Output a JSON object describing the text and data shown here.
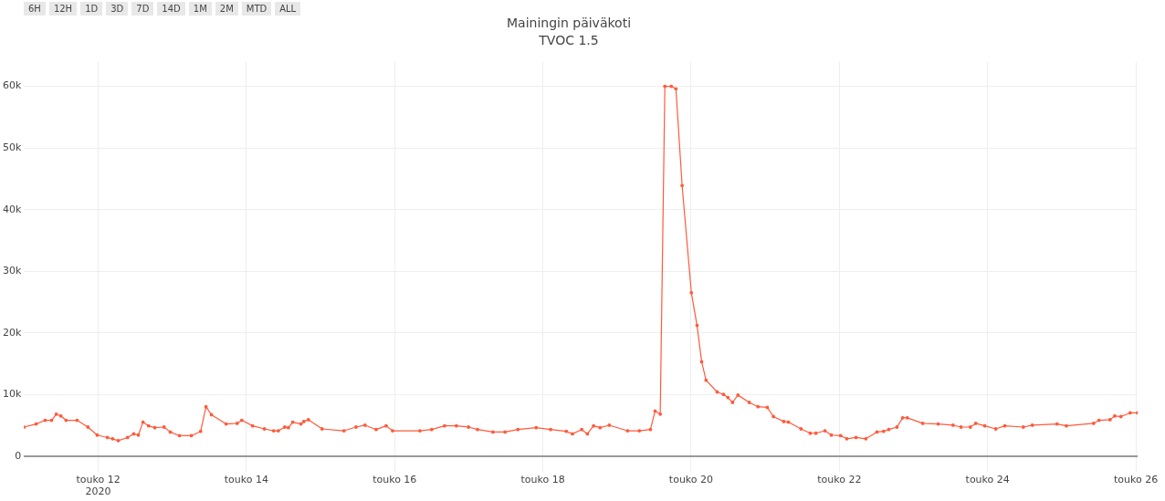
{
  "chart_data": {
    "type": "line",
    "title": "Mainingin päiväkoti",
    "subtitle": "TVOC 1.5",
    "annotations": [
      "6H",
      "12H",
      "1D",
      "3D",
      "7D",
      "14D",
      "1M",
      "2M",
      "MTD",
      "ALL"
    ],
    "grid": true,
    "legend": false,
    "marker": "circle",
    "line_style": "solid",
    "xlim": [
      "2020-05-11T00:00",
      "2020-05-26T00:35"
    ],
    "xticks": [
      {
        "value": "2020-05-12",
        "label": "touko 12\n2020"
      },
      {
        "value": "2020-05-14",
        "label": "touko 14"
      },
      {
        "value": "2020-05-16",
        "label": "touko 16"
      },
      {
        "value": "2020-05-18",
        "label": "touko 18"
      },
      {
        "value": "2020-05-20",
        "label": "touko 20"
      },
      {
        "value": "2020-05-22",
        "label": "touko 22"
      },
      {
        "value": "2020-05-24",
        "label": "touko 24"
      },
      {
        "value": "2020-05-26",
        "label": "touko 26"
      }
    ],
    "ylim": [
      -2500,
      64000
    ],
    "yticks": [
      0,
      {
        "value": 10000,
        "label": "10k"
      },
      {
        "value": 20000,
        "label": "20k"
      },
      {
        "value": 30000,
        "label": "30k"
      },
      {
        "value": 40000,
        "label": "40k"
      },
      {
        "value": 50000,
        "label": "50k"
      },
      {
        "value": 60000,
        "label": "60k"
      }
    ],
    "x": [
      "2020-05-11T00:00",
      "2020-05-11T03:55",
      "2020-05-11T06:50",
      "2020-05-11T08:55",
      "2020-05-11T10:25",
      "2020-05-11T11:55",
      "2020-05-11T13:35",
      "2020-05-11T17:10",
      "2020-05-11T20:40",
      "2020-05-11T23:40",
      "2020-05-12T03:00",
      "2020-05-12T04:40",
      "2020-05-12T06:30",
      "2020-05-12T09:30",
      "2020-05-12T11:30",
      "2020-05-12T13:00",
      "2020-05-12T14:30",
      "2020-05-12T16:20",
      "2020-05-12T18:20",
      "2020-05-12T21:20",
      "2020-05-12T23:20",
      "2020-05-13T02:20",
      "2020-05-13T06:10",
      "2020-05-13T09:10",
      "2020-05-13T10:55",
      "2020-05-13T12:40",
      "2020-05-13T17:25",
      "2020-05-13T21:00",
      "2020-05-13T22:30",
      "2020-05-14T02:00",
      "2020-05-14T05:50",
      "2020-05-14T08:50",
      "2020-05-14T10:20",
      "2020-05-14T12:25",
      "2020-05-14T13:35",
      "2020-05-14T15:00",
      "2020-05-14T17:40",
      "2020-05-14T18:35",
      "2020-05-14T20:05",
      "2020-05-15T00:30",
      "2020-05-15T07:35",
      "2020-05-15T11:30",
      "2020-05-15T14:25",
      "2020-05-15T18:00",
      "2020-05-15T21:15",
      "2020-05-15T23:20",
      "2020-05-16T08:10",
      "2020-05-16T12:00",
      "2020-05-16T16:10",
      "2020-05-16T20:00",
      "2020-05-16T23:55",
      "2020-05-17T02:50",
      "2020-05-17T07:50",
      "2020-05-17T11:45",
      "2020-05-17T15:55",
      "2020-05-17T21:50",
      "2020-05-18T02:30",
      "2020-05-18T07:35",
      "2020-05-18T09:35",
      "2020-05-18T12:35",
      "2020-05-18T14:25",
      "2020-05-18T16:25",
      "2020-05-18T18:30",
      "2020-05-18T21:30",
      "2020-05-19T03:25",
      "2020-05-19T07:15",
      "2020-05-19T10:50",
      "2020-05-19T12:20",
      "2020-05-19T14:00",
      "2020-05-19T15:30",
      "2020-05-19T17:35",
      "2020-05-19T19:05",
      "2020-05-19T21:05",
      "2020-05-20T00:05",
      "2020-05-20T01:55",
      "2020-05-20T03:25",
      "2020-05-20T04:50",
      "2020-05-20T08:25",
      "2020-05-20T10:30",
      "2020-05-20T11:55",
      "2020-05-20T13:25",
      "2020-05-20T15:10",
      "2020-05-20T18:50",
      "2020-05-20T21:40",
      "2020-05-21T00:40",
      "2020-05-21T02:40",
      "2020-05-21T06:00",
      "2020-05-21T07:30",
      "2020-05-21T11:35",
      "2020-05-21T14:35",
      "2020-05-21T16:25",
      "2020-05-21T19:20",
      "2020-05-21T21:25",
      "2020-05-22T00:25",
      "2020-05-22T02:25",
      "2020-05-22T05:25",
      "2020-05-22T08:35",
      "2020-05-22T12:10",
      "2020-05-22T14:20",
      "2020-05-22T16:00",
      "2020-05-22T18:40",
      "2020-05-22T20:30",
      "2020-05-22T22:00",
      "2020-05-23T03:00",
      "2020-05-23T08:00",
      "2020-05-23T12:50",
      "2020-05-23T15:25",
      "2020-05-23T18:25",
      "2020-05-23T20:10",
      "2020-05-23T23:05",
      "2020-05-24T02:40",
      "2020-05-24T05:35",
      "2020-05-24T11:35",
      "2020-05-24T14:30",
      "2020-05-24T22:30",
      "2020-05-25T01:30",
      "2020-05-25T10:20",
      "2020-05-25T12:05",
      "2020-05-25T15:40",
      "2020-05-25T17:10",
      "2020-05-25T19:10",
      "2020-05-25T22:10",
      "2020-05-26T00:35"
    ],
    "series": [
      {
        "color": "#ff5a3c",
        "values": [
          4700,
          5200,
          5800,
          5800,
          6800,
          6500,
          5800,
          5800,
          4700,
          3400,
          3000,
          2800,
          2500,
          3000,
          3600,
          3400,
          5500,
          4900,
          4600,
          4700,
          3900,
          3300,
          3300,
          4000,
          8000,
          6700,
          5200,
          5300,
          5800,
          4900,
          4400,
          4100,
          4100,
          4700,
          4600,
          5500,
          5200,
          5600,
          5900,
          4400,
          4100,
          4700,
          5000,
          4300,
          4900,
          4100,
          4100,
          4300,
          4900,
          4900,
          4700,
          4300,
          3900,
          3900,
          4300,
          4600,
          4300,
          4000,
          3600,
          4300,
          3600,
          4900,
          4600,
          5000,
          4100,
          4100,
          4300,
          7300,
          6800,
          60000,
          60000,
          59600,
          43900,
          26500,
          21200,
          15300,
          12300,
          10400,
          10000,
          9500,
          8700,
          9900,
          8700,
          8000,
          7900,
          6400,
          5600,
          5500,
          4400,
          3700,
          3700,
          4100,
          3400,
          3300,
          2800,
          3000,
          2800,
          3900,
          4000,
          4300,
          4700,
          6200,
          6200,
          5300,
          5200,
          5000,
          4700,
          4700,
          5300,
          4900,
          4400,
          4900,
          4700,
          5000,
          5200,
          4900,
          5300,
          5800,
          5900,
          6500,
          6400,
          7000,
          7000
        ]
      }
    ]
  }
}
